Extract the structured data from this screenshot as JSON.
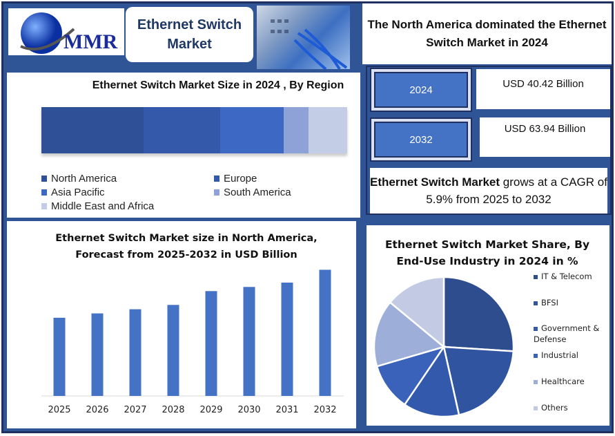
{
  "header": {
    "logo_text": "MMR",
    "title": "Ethernet Switch Market",
    "headline": "The North America dominated the Ethernet Switch Market in 2024"
  },
  "kpis": [
    {
      "year": "2024",
      "value": "USD 40.42 Billion"
    },
    {
      "year": "2032",
      "value": "USD 63.94 Billion"
    }
  ],
  "cagr": {
    "bold": "Ethernet Switch Market",
    "text": " grows at a CAGR of 5.9% from 2025 to 2032"
  },
  "colors": {
    "frame": "#2f5597",
    "dark": "#1f3060",
    "bar": "#4472c4"
  },
  "chart_data": [
    {
      "type": "bar",
      "stacked": true,
      "orientation": "horizontal",
      "title": "Ethernet Switch Market Size in 2024 , By Region",
      "unit": "percent share (estimated)",
      "series": [
        {
          "name": "North America",
          "value": 33.4,
          "color": "#2f4f96"
        },
        {
          "name": "Europe",
          "value": 25.0,
          "color": "#3458aa"
        },
        {
          "name": "Asia Pacific",
          "value": 20.8,
          "color": "#3d68c4"
        },
        {
          "name": "South America",
          "value": 8.1,
          "color": "#8ea2d8"
        },
        {
          "name": "Middle East and Africa",
          "value": 12.7,
          "color": "#c4cde6"
        }
      ],
      "legend": "bottom"
    },
    {
      "type": "bar",
      "title": "Ethernet Switch Market size in North America, Forecast from 2025-2032 in USD Billion",
      "categories": [
        "2025",
        "2026",
        "2027",
        "2028",
        "2029",
        "2030",
        "2031",
        "2032"
      ],
      "values": [
        39.6,
        41.8,
        43.9,
        46.1,
        53.1,
        55.2,
        57.4,
        63.9
      ],
      "ylim": [
        0,
        70
      ],
      "grid": false,
      "xlabel": "",
      "ylabel": ""
    },
    {
      "type": "pie",
      "title": "Ethernet Switch Market Share, By End-Use Industry in 2024 in %",
      "labels": [
        "IT & Telecom",
        "BFSI",
        "Government & Defense",
        "Industrial",
        "Healthcare",
        "Others"
      ],
      "values": [
        26,
        20.5,
        13,
        11,
        15.5,
        14
      ],
      "colors": [
        "#2e4d8f",
        "#30549f",
        "#3259ab",
        "#3a62bb",
        "#9daed9",
        "#c3cbe4"
      ],
      "legend": "right"
    }
  ]
}
